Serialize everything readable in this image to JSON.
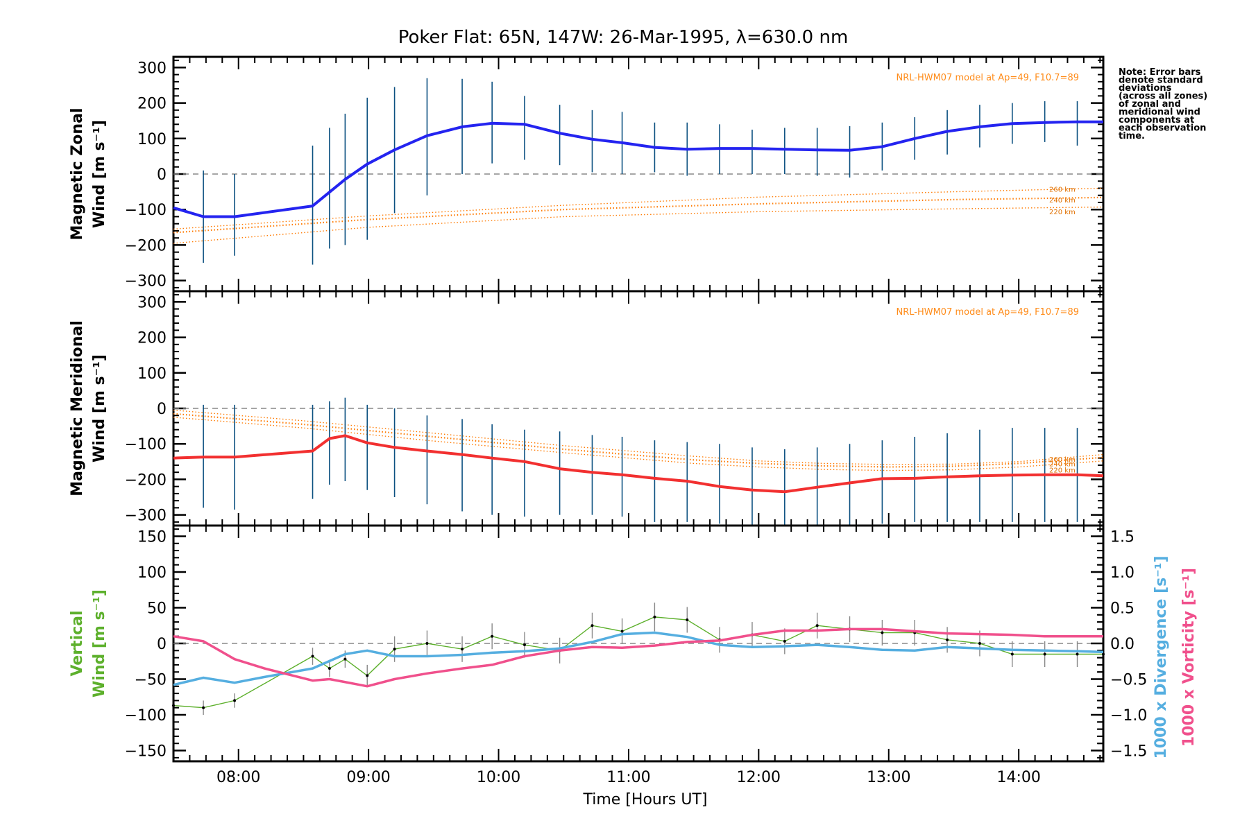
{
  "title": "Poker Flat: 65N, 147W: 26-Mar-1995, λ=630.0 nm",
  "xlabel": "Time [Hours UT]",
  "note_lines": [
    "Note: Error bars",
    "denote standard",
    "deviations",
    "(across all zones)",
    "of zonal and",
    "meridional wind",
    "components at",
    "each observation",
    "time."
  ],
  "model_label": "NRL-HWM07 model at Ap=49, F10.7=89",
  "colors": {
    "zonal": "#2424f0",
    "meridional": "#f23030",
    "model": "#ff7a00",
    "vertical": "#5db02c",
    "divergence": "#55aee0",
    "vorticity": "#f0508c",
    "errbar": "#0b5080"
  },
  "chart_data": [
    {
      "type": "line",
      "panel": "zonal",
      "ylabel": [
        "Magnetic Zonal",
        "Wind [m s⁻¹]"
      ],
      "ylim": [
        -330,
        330
      ],
      "yticks": [
        300,
        200,
        100,
        0,
        -100,
        -200,
        -300
      ],
      "xlim": [
        7.5,
        14.65
      ],
      "series": [
        {
          "name": "Magnetic Zonal Wind",
          "x": [
            7.5,
            7.73,
            7.97,
            8.57,
            8.82,
            8.99,
            9.2,
            9.45,
            9.72,
            9.95,
            10.2,
            10.47,
            10.72,
            10.95,
            11.2,
            11.45,
            11.7,
            11.95,
            12.2,
            12.45,
            12.7,
            12.95,
            13.2,
            13.45,
            13.7,
            13.95,
            14.2,
            14.45,
            14.65
          ],
          "y": [
            -95,
            -120,
            -120,
            -90,
            -15,
            28,
            68,
            108,
            133,
            143,
            140,
            115,
            98,
            88,
            75,
            70,
            72,
            72,
            70,
            68,
            67,
            77,
            100,
            120,
            133,
            142,
            145,
            147,
            147
          ]
        }
      ],
      "error_x": [
        7.73,
        7.97,
        8.57,
        8.7,
        8.82,
        8.99,
        9.2,
        9.45,
        9.72,
        9.95,
        10.2,
        10.47,
        10.72,
        10.95,
        11.2,
        11.45,
        11.7,
        11.95,
        12.2,
        12.45,
        12.7,
        12.95,
        13.2,
        13.45,
        13.7,
        13.95,
        14.2,
        14.45
      ],
      "error_lo": [
        -250,
        -230,
        -255,
        -210,
        -200,
        -185,
        -110,
        -60,
        0,
        30,
        40,
        25,
        5,
        0,
        5,
        -5,
        0,
        0,
        0,
        -5,
        -10,
        10,
        40,
        55,
        75,
        85,
        90,
        80
      ],
      "error_hi": [
        10,
        0,
        80,
        130,
        170,
        215,
        245,
        270,
        268,
        260,
        220,
        195,
        180,
        175,
        145,
        145,
        140,
        125,
        130,
        130,
        135,
        145,
        160,
        180,
        195,
        200,
        205,
        205
      ],
      "model": {
        "label": "NRL-HWM07 model at Ap=49, F10.7=89",
        "x": [
          7.5,
          9.0,
          10.5,
          12.0,
          13.5,
          14.65
        ],
        "altitudes": [
          {
            "label": "260 km",
            "y": [
              -155,
              -118,
              -88,
              -65,
              -50,
              -40
            ]
          },
          {
            "label": "240 km",
            "y": [
              -165,
              -128,
              -100,
              -84,
              -72,
              -66
            ]
          },
          {
            "label": "220 km",
            "y": [
              -195,
              -150,
              -120,
              -106,
              -98,
              -93
            ]
          }
        ]
      }
    },
    {
      "type": "line",
      "panel": "meridional",
      "ylabel": [
        "Magnetic Meridional",
        "Wind [m s⁻¹]"
      ],
      "ylim": [
        -330,
        330
      ],
      "yticks": [
        300,
        200,
        100,
        0,
        -100,
        -200,
        -300
      ],
      "xlim": [
        7.5,
        14.65
      ],
      "series": [
        {
          "name": "Magnetic Meridional Wind",
          "x": [
            7.5,
            7.73,
            7.97,
            8.57,
            8.7,
            8.82,
            8.99,
            9.2,
            9.45,
            9.72,
            9.95,
            10.2,
            10.47,
            10.72,
            10.95,
            11.2,
            11.45,
            11.7,
            11.95,
            12.2,
            12.45,
            12.7,
            12.95,
            13.2,
            13.45,
            13.7,
            13.95,
            14.2,
            14.45,
            14.65
          ],
          "y": [
            -140,
            -137,
            -137,
            -120,
            -85,
            -77,
            -97,
            -110,
            -120,
            -130,
            -140,
            -150,
            -170,
            -180,
            -187,
            -197,
            -205,
            -220,
            -230,
            -235,
            -222,
            -210,
            -198,
            -197,
            -193,
            -190,
            -188,
            -187,
            -187,
            -190
          ]
        }
      ],
      "error_x": [
        7.73,
        7.97,
        8.57,
        8.7,
        8.82,
        8.99,
        9.2,
        9.45,
        9.72,
        9.95,
        10.2,
        10.47,
        10.72,
        10.95,
        11.2,
        11.45,
        11.7,
        11.95,
        12.2,
        12.45,
        12.7,
        12.95,
        13.2,
        13.45,
        13.7,
        13.95,
        14.2,
        14.45
      ],
      "error_lo": [
        -280,
        -285,
        -255,
        -215,
        -205,
        -230,
        -250,
        -270,
        -290,
        -300,
        -305,
        -300,
        -300,
        -305,
        -320,
        -320,
        -325,
        -330,
        -330,
        -330,
        -330,
        -325,
        -320,
        -320,
        -320,
        -320,
        -320,
        -320
      ],
      "error_hi": [
        10,
        10,
        10,
        20,
        30,
        10,
        0,
        -20,
        -30,
        -45,
        -60,
        -65,
        -75,
        -80,
        -90,
        -95,
        -100,
        -110,
        -115,
        -110,
        -100,
        -90,
        -80,
        -70,
        -60,
        -55,
        -55,
        -55
      ],
      "model": {
        "label": "NRL-HWM07 model at Ap=49, F10.7=89",
        "x": [
          7.5,
          8.5,
          9.5,
          10.5,
          11.5,
          12.0,
          12.5,
          13.0,
          13.5,
          14.0,
          14.65
        ],
        "altitudes": [
          {
            "label": "260 km",
            "y": [
              -5,
              -35,
              -70,
              -105,
              -135,
              -148,
              -155,
              -158,
              -157,
              -150,
              -130
            ]
          },
          {
            "label": "240 km",
            "y": [
              -15,
              -45,
              -80,
              -115,
              -145,
              -155,
              -162,
              -165,
              -163,
              -155,
              -138
            ]
          },
          {
            "label": "220 km",
            "y": [
              -25,
              -55,
              -92,
              -125,
              -155,
              -165,
              -172,
              -175,
              -173,
              -165,
              -148
            ]
          }
        ]
      }
    },
    {
      "type": "line",
      "panel": "vertical",
      "ylabel_left": [
        "Vertical",
        "Wind [m s⁻¹]"
      ],
      "ylabel_right_div": "1000 x Divergence [s⁻¹]",
      "ylabel_right_vort": "1000 x Vorticity [s⁻¹]",
      "ylim": [
        -165,
        165
      ],
      "yticks": [
        150,
        100,
        50,
        0,
        -50,
        -100,
        -150
      ],
      "ylim_right": [
        -1.65,
        1.65
      ],
      "yticks_right": [
        "1.5",
        "1.0",
        "0.5",
        "0.0",
        "-0.5",
        "-1.0",
        "-1.5"
      ],
      "xlim": [
        7.5,
        14.65
      ],
      "xticks": [
        "08:00",
        "09:00",
        "10:00",
        "11:00",
        "12:00",
        "13:00",
        "14:00"
      ],
      "xtick_values": [
        8,
        9,
        10,
        11,
        12,
        13,
        14
      ],
      "series": [
        {
          "name": "Vertical Wind",
          "x": [
            7.5,
            7.73,
            7.97,
            8.57,
            8.7,
            8.82,
            8.99,
            9.2,
            9.45,
            9.72,
            9.95,
            10.2,
            10.47,
            10.72,
            10.95,
            11.2,
            11.45,
            11.7,
            11.95,
            12.2,
            12.45,
            12.7,
            12.95,
            13.2,
            13.45,
            13.7,
            13.95,
            14.2,
            14.45,
            14.65
          ],
          "y": [
            -87,
            -90,
            -80,
            -18,
            -35,
            -22,
            -45,
            -8,
            0,
            -8,
            10,
            -2,
            -10,
            25,
            17,
            37,
            33,
            5,
            12,
            3,
            25,
            20,
            15,
            15,
            5,
            0,
            -15,
            -15,
            -15,
            -15
          ],
          "err": [
            0,
            10,
            10,
            12,
            12,
            12,
            15,
            18,
            18,
            18,
            18,
            18,
            18,
            18,
            18,
            20,
            18,
            18,
            18,
            18,
            18,
            18,
            18,
            18,
            18,
            18,
            18,
            18,
            18,
            0
          ]
        },
        {
          "name": "1000 x Divergence",
          "x": [
            7.5,
            7.73,
            7.97,
            8.2,
            8.57,
            8.82,
            8.99,
            9.2,
            9.45,
            9.72,
            9.95,
            10.2,
            10.47,
            10.72,
            10.95,
            11.2,
            11.45,
            11.7,
            11.95,
            12.2,
            12.45,
            12.7,
            12.95,
            13.2,
            13.45,
            13.7,
            13.95,
            14.2,
            14.45,
            14.65
          ],
          "y": [
            -0.58,
            -0.48,
            -0.55,
            -0.47,
            -0.35,
            -0.15,
            -0.1,
            -0.18,
            -0.18,
            -0.16,
            -0.13,
            -0.11,
            -0.07,
            0.02,
            0.13,
            0.15,
            0.09,
            -0.02,
            -0.05,
            -0.04,
            -0.02,
            -0.05,
            -0.09,
            -0.1,
            -0.05,
            -0.07,
            -0.09,
            -0.1,
            -0.11,
            -0.12
          ]
        },
        {
          "name": "1000 x Vorticity",
          "x": [
            7.5,
            7.73,
            7.97,
            8.2,
            8.57,
            8.7,
            8.99,
            9.2,
            9.45,
            9.72,
            9.95,
            10.2,
            10.47,
            10.72,
            10.95,
            11.2,
            11.45,
            11.7,
            11.95,
            12.2,
            12.45,
            12.7,
            12.95,
            13.2,
            13.45,
            13.7,
            13.95,
            14.2,
            14.45,
            14.65
          ],
          "y": [
            0.1,
            0.03,
            -0.22,
            -0.35,
            -0.52,
            -0.5,
            -0.6,
            -0.5,
            -0.42,
            -0.35,
            -0.3,
            -0.18,
            -0.1,
            -0.05,
            -0.06,
            -0.03,
            0.02,
            0.04,
            0.12,
            0.18,
            0.18,
            0.2,
            0.2,
            0.17,
            0.14,
            0.13,
            0.12,
            0.1,
            0.1,
            0.1
          ]
        }
      ]
    }
  ]
}
